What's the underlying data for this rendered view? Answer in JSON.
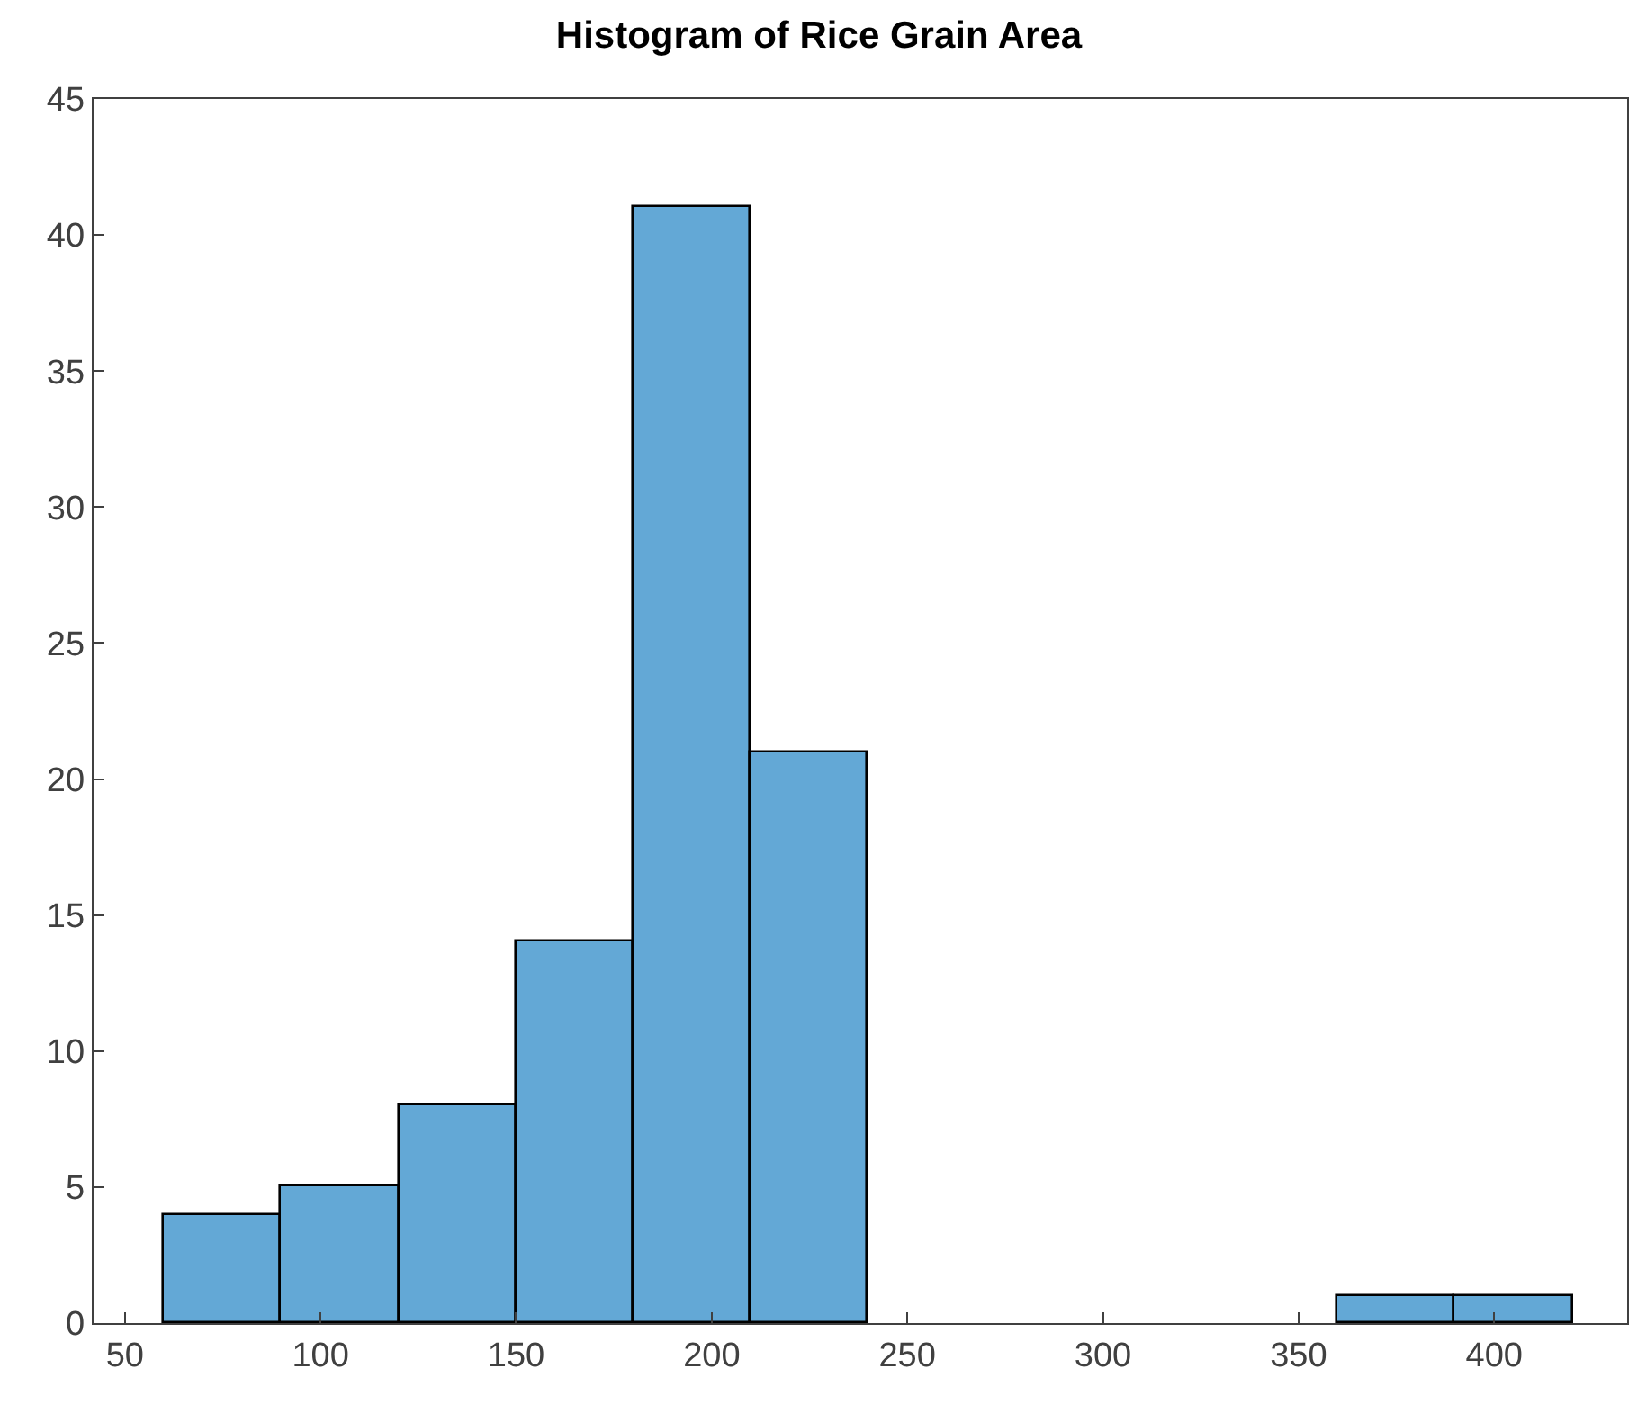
{
  "chart_data": {
    "type": "histogram",
    "title": "Histogram of Rice Grain Area",
    "bins": [
      60,
      90,
      120,
      150,
      180,
      210,
      240,
      270,
      300,
      330,
      360,
      390,
      420
    ],
    "values": [
      4,
      5,
      8,
      14,
      41,
      21,
      0,
      0,
      0,
      0,
      1,
      1
    ],
    "color": "#63a8d6",
    "xlim": [
      42,
      434
    ],
    "xticks": [
      50,
      100,
      150,
      200,
      250,
      300,
      350,
      400
    ],
    "ylim": [
      0,
      45
    ],
    "yticks": [
      0,
      5,
      10,
      15,
      20,
      25,
      30,
      35,
      40,
      45
    ]
  }
}
